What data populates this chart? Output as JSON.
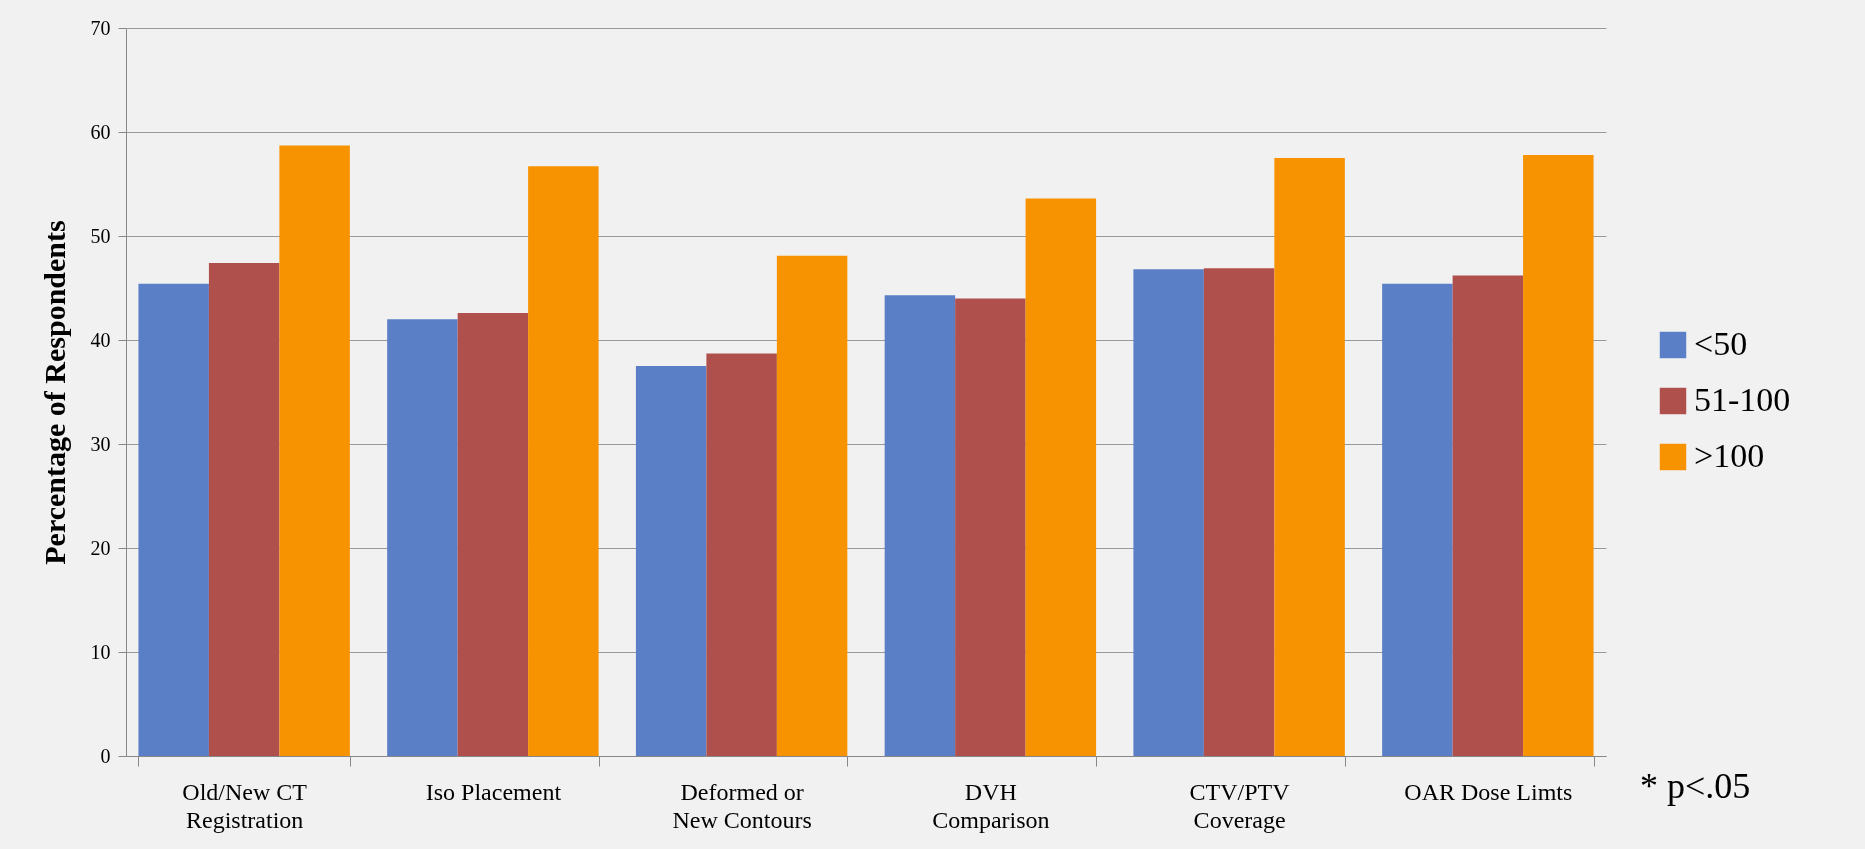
{
  "chart_data": {
    "type": "bar",
    "ylabel": "Percentage of Respondents",
    "categories": [
      "Old/New CT\nRegistration",
      "Iso Placement",
      "Deformed or\nNew Contours",
      "DVH\nComparison",
      "CTV/PTV\nCoverage",
      "OAR Dose Limts"
    ],
    "series": [
      {
        "name": "<50",
        "color": "#5b7fc6",
        "values": [
          45.4,
          42.0,
          37.5,
          44.3,
          46.8,
          45.4
        ]
      },
      {
        "name": "51-100",
        "color": "#b0504d",
        "values": [
          47.4,
          42.6,
          38.7,
          44.0,
          46.9,
          46.2
        ]
      },
      {
        "name": ">100",
        "color": "#f79200",
        "values": [
          58.7,
          56.7,
          48.1,
          53.6,
          57.5,
          57.8
        ]
      }
    ],
    "ylim": [
      0,
      70
    ],
    "yticks": [
      0,
      10,
      20,
      30,
      40,
      50,
      60,
      70
    ],
    "grid": "y",
    "legend": "right",
    "annotations": [
      "* p<.05"
    ]
  }
}
